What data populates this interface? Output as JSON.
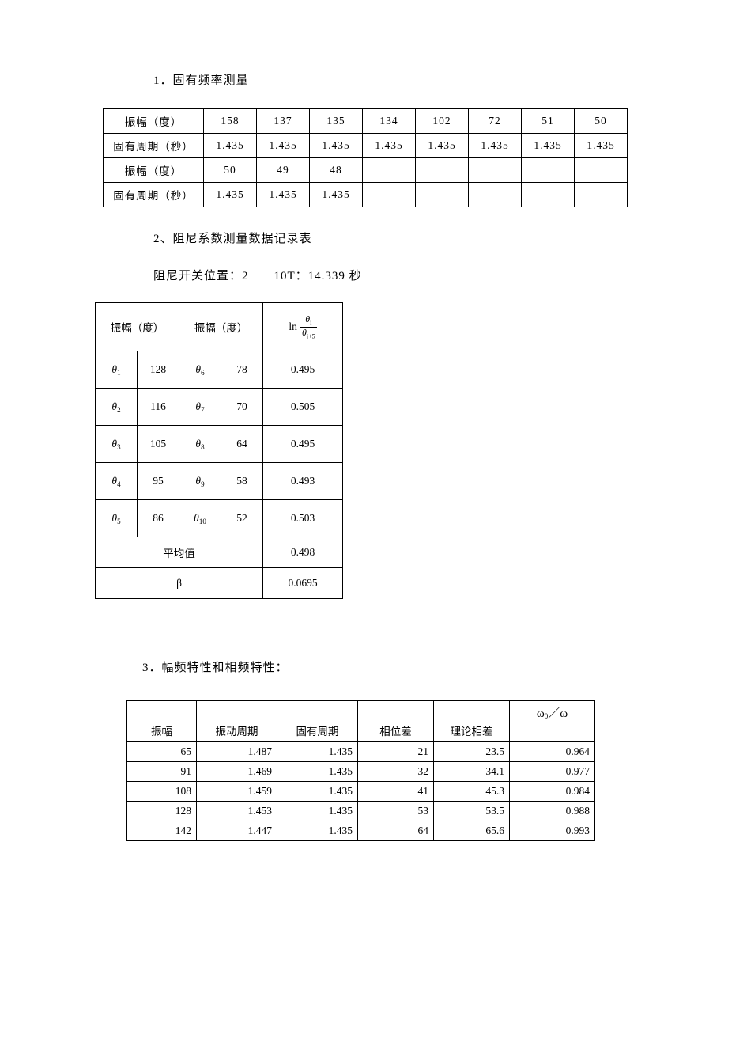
{
  "s1": {
    "heading": "1．固有频率测量",
    "row1_label": "振幅（度）",
    "row2_label": "固有周期（秒）",
    "row3_label": "振幅（度）",
    "row4_label": "固有周期（秒）",
    "amp_a": [
      "158",
      "137",
      "135",
      "134",
      "102",
      "72",
      "51",
      "50"
    ],
    "per_a": [
      "1.435",
      "1.435",
      "1.435",
      "1.435",
      "1.435",
      "1.435",
      "1.435",
      "1.435"
    ],
    "amp_b": [
      "50",
      "49",
      "48",
      "",
      "",
      "",
      "",
      ""
    ],
    "per_b": [
      "1.435",
      "1.435",
      "1.435",
      "",
      "",
      "",
      "",
      ""
    ]
  },
  "s2": {
    "heading": "2、阻尼系数测量数据记录表",
    "subline": "阻尼开关位置：2　　10T：14.339 秒",
    "hdr_amp": "振幅（度）",
    "hdr_ln_prefix": "ln",
    "theta_labels_a": [
      "θ",
      "θ",
      "θ",
      "θ",
      "θ"
    ],
    "theta_idx_a": [
      "1",
      "2",
      "3",
      "4",
      "5"
    ],
    "theta_vals_a": [
      "128",
      "116",
      "105",
      "95",
      "86"
    ],
    "theta_labels_b": [
      "θ",
      "θ",
      "θ",
      "θ",
      "θ"
    ],
    "theta_idx_b": [
      "6",
      "7",
      "8",
      "9",
      "10"
    ],
    "theta_vals_b": [
      "78",
      "70",
      "64",
      "58",
      "52"
    ],
    "ln_vals": [
      "0.495",
      "0.505",
      "0.495",
      "0.493",
      "0.503"
    ],
    "avg_label": "平均值",
    "avg_val": "0.498",
    "beta_label": "β",
    "beta_val": "0.0695",
    "frac_num_sub": "i",
    "frac_den_sub": "i+5"
  },
  "s3": {
    "heading": "3．幅频特性和相频特性：",
    "cols": [
      "振幅",
      "振动周期",
      "固有周期",
      "相位差",
      "理论相差"
    ],
    "ratio_html_w0": "ω",
    "ratio_html_w": "ω",
    "rows": [
      [
        "65",
        "1.487",
        "1.435",
        "21",
        "23.5",
        "0.964"
      ],
      [
        "91",
        "1.469",
        "1.435",
        "32",
        "34.1",
        "0.977"
      ],
      [
        "108",
        "1.459",
        "1.435",
        "41",
        "45.3",
        "0.984"
      ],
      [
        "128",
        "1.453",
        "1.435",
        "53",
        "53.5",
        "0.988"
      ],
      [
        "142",
        "1.447",
        "1.435",
        "64",
        "65.6",
        "0.993"
      ]
    ]
  }
}
